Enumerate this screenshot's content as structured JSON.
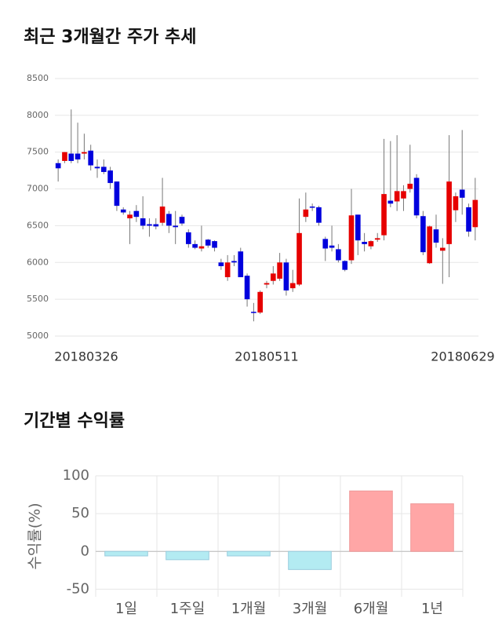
{
  "chart_data": [
    {
      "type": "candlestick",
      "title": "최근 3개월간 주가 추세",
      "categories": [
        "20180326",
        null,
        null,
        null,
        null,
        null,
        null,
        null,
        null,
        null,
        null,
        null,
        null,
        null,
        null,
        null,
        null,
        null,
        null,
        null,
        null,
        null,
        null,
        null,
        null,
        null,
        null,
        null,
        null,
        null,
        null,
        null,
        "20180511",
        null,
        null,
        null,
        null,
        null,
        null,
        null,
        null,
        null,
        null,
        null,
        null,
        null,
        null,
        null,
        null,
        null,
        null,
        null,
        null,
        null,
        null,
        null,
        null,
        null,
        null,
        null,
        null,
        null,
        null,
        null,
        "20180629"
      ],
      "open": [
        7350,
        7380,
        7480,
        7480,
        7480,
        7520,
        7300,
        7300,
        7250,
        7100,
        6720,
        6600,
        6700,
        6600,
        6520,
        6520,
        6540,
        6660,
        6500,
        6620,
        6410,
        6250,
        6190,
        6310,
        6290,
        6000,
        5800,
        6020,
        6150,
        5820,
        5330,
        5320,
        5700,
        5750,
        5780,
        6000,
        5650,
        5700,
        6620,
        6760,
        6750,
        6320,
        6230,
        6180,
        6020,
        6030,
        6650,
        6280,
        6220,
        6310,
        6370,
        6840,
        6830,
        6870,
        7000,
        7150,
        6630,
        5990,
        6450,
        6160,
        6250,
        6710,
        6990,
        6750,
        6480
      ],
      "high": [
        7400,
        7500,
        8080,
        7900,
        7750,
        7600,
        7400,
        7400,
        7300,
        7100,
        6750,
        6700,
        6780,
        6900,
        6600,
        6600,
        7150,
        6700,
        6700,
        6650,
        6450,
        6300,
        6500,
        6320,
        6300,
        6050,
        6100,
        6100,
        6200,
        5850,
        5450,
        5620,
        5750,
        5950,
        6130,
        6050,
        5900,
        6870,
        6950,
        6800,
        6770,
        6350,
        6500,
        6250,
        6030,
        7000,
        6650,
        6400,
        6300,
        6400,
        7680,
        7650,
        7730,
        7050,
        7600,
        7200,
        6700,
        6500,
        6650,
        6330,
        7730,
        6950,
        7800,
        6800,
        7150
      ],
      "low": [
        7100,
        7350,
        7350,
        7350,
        7400,
        7250,
        7150,
        7200,
        7000,
        6700,
        6650,
        6250,
        6550,
        6450,
        6350,
        6450,
        6500,
        6400,
        6250,
        6500,
        6200,
        6180,
        6150,
        6200,
        6150,
        5900,
        5750,
        5950,
        5800,
        5400,
        5200,
        5300,
        5650,
        5700,
        5750,
        5550,
        5600,
        5680,
        6550,
        6700,
        6500,
        6020,
        6150,
        6000,
        5880,
        5980,
        6100,
        6150,
        6180,
        6280,
        6300,
        6750,
        6700,
        6700,
        6950,
        6600,
        6100,
        5980,
        6200,
        5710,
        5800,
        6550,
        6650,
        6350,
        6300
      ],
      "close": [
        7280,
        7500,
        7380,
        7400,
        7500,
        7320,
        7280,
        7230,
        7080,
        6770,
        6680,
        6650,
        6620,
        6500,
        6500,
        6490,
        6760,
        6500,
        6480,
        6530,
        6250,
        6200,
        6220,
        6230,
        6200,
        5950,
        6000,
        6000,
        5800,
        5500,
        5320,
        5600,
        5720,
        5850,
        6000,
        5620,
        5720,
        6400,
        6720,
        6750,
        6540,
        6190,
        6200,
        6030,
        5900,
        6640,
        6300,
        6250,
        6290,
        6330,
        6930,
        6800,
        6970,
        6970,
        7070,
        6640,
        6140,
        6490,
        6270,
        6200,
        7100,
        6900,
        6880,
        6420,
        6850
      ],
      "up_color": "#e60000",
      "down_color": "#0000dd",
      "ylim": [
        5000,
        8500
      ],
      "yticks": [
        5000,
        5500,
        6000,
        6500,
        7000,
        7500,
        8000,
        8500
      ],
      "grid": true
    },
    {
      "type": "bar",
      "title": "기간별 수익률",
      "y_label": "수익률(%)",
      "categories": [
        "1일",
        "1주일",
        "1개월",
        "3개월",
        "6개월",
        "1년"
      ],
      "values": [
        -6,
        -11,
        -6,
        -24,
        80,
        63
      ],
      "positive_color": "#ffa6a6",
      "negative_color": "#b3ebf2",
      "ylim": [
        -60,
        100
      ],
      "yticks": [
        -50,
        0,
        50,
        100
      ],
      "grid": true
    }
  ]
}
